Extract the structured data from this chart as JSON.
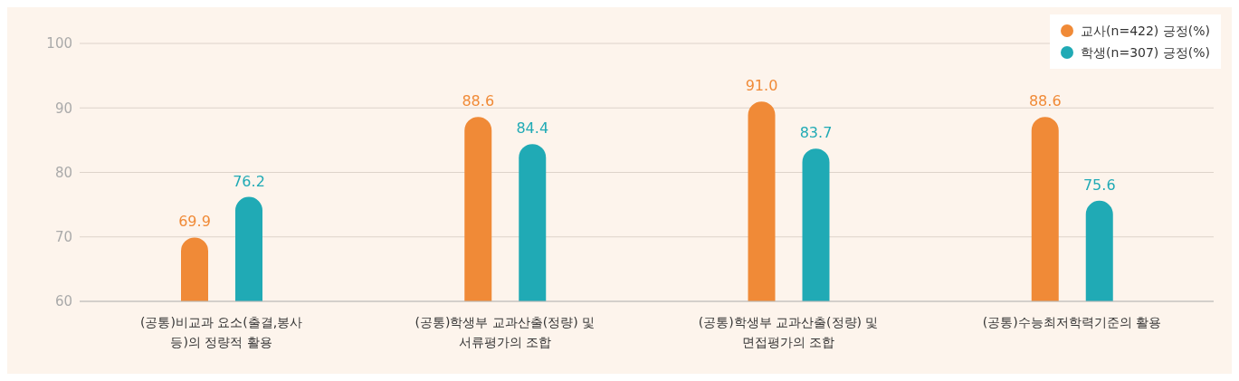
{
  "chart_data": {
    "type": "bar",
    "categories": [
      "(공통)비교과 요소(출결,봉사 등)의 정량적 활용",
      "(공통)학생부 교과산출(정량) 및 서류평가의 조합",
      "(공통)학생부 교과산출(정량) 및 면접평가의 조합",
      "(공통)수능최저학력기준의 활용"
    ],
    "series": [
      {
        "name": "교사(n=422) 긍정(%)",
        "color": "#f08a37",
        "values": [
          69.9,
          88.6,
          91.0,
          88.6
        ],
        "value_labels": [
          "69.9",
          "88.6",
          "91.0",
          "88.6"
        ]
      },
      {
        "name": "학생(n=307) 긍정(%)",
        "color": "#20aab5",
        "values": [
          76.2,
          84.4,
          83.7,
          75.6
        ],
        "value_labels": [
          "76.2",
          "84.4",
          "83.7",
          "75.6"
        ]
      }
    ],
    "ylim": [
      60,
      100
    ],
    "yticks": [
      60,
      70,
      80,
      90,
      100
    ],
    "grid": "y",
    "legend": "top right"
  }
}
